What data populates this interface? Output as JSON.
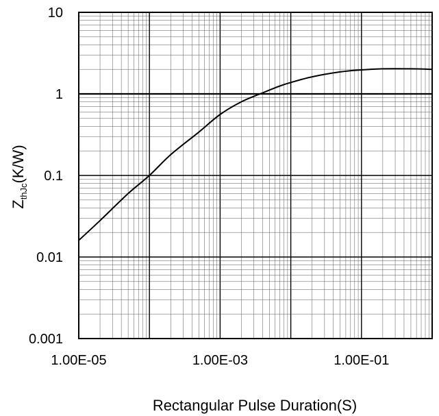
{
  "chart_data": {
    "type": "line",
    "title": "",
    "xlabel": "Rectangular Pulse Duration(S)",
    "ylabel": {
      "main": "Z",
      "sub": "thJc",
      "unit": "(K/W)"
    },
    "x_scale": "log",
    "y_scale": "log",
    "xlim": [
      1e-05,
      1
    ],
    "ylim": [
      0.001,
      10
    ],
    "x_ticks": [
      {
        "value": 1e-05,
        "label": "1.00E-05"
      },
      {
        "value": 0.001,
        "label": "1.00E-03"
      },
      {
        "value": 0.1,
        "label": "1.00E-01"
      }
    ],
    "y_ticks": [
      {
        "value": 0.001,
        "label": "0.001"
      },
      {
        "value": 0.01,
        "label": "0.01"
      },
      {
        "value": 0.1,
        "label": "0.1"
      },
      {
        "value": 1,
        "label": "1"
      },
      {
        "value": 10,
        "label": "10"
      }
    ],
    "grid": true,
    "legend": "none",
    "series": [
      {
        "color": "#000000",
        "x": [
          1e-05,
          2e-05,
          5e-05,
          0.0001,
          0.0002,
          0.0005,
          0.001,
          0.002,
          0.004,
          0.007,
          0.01,
          0.02,
          0.05,
          0.1,
          0.2,
          0.5,
          1
        ],
        "y": [
          0.016,
          0.028,
          0.06,
          0.1,
          0.18,
          0.34,
          0.56,
          0.8,
          1.03,
          1.25,
          1.38,
          1.62,
          1.86,
          1.97,
          2.03,
          2.03,
          2.0
        ]
      }
    ]
  }
}
